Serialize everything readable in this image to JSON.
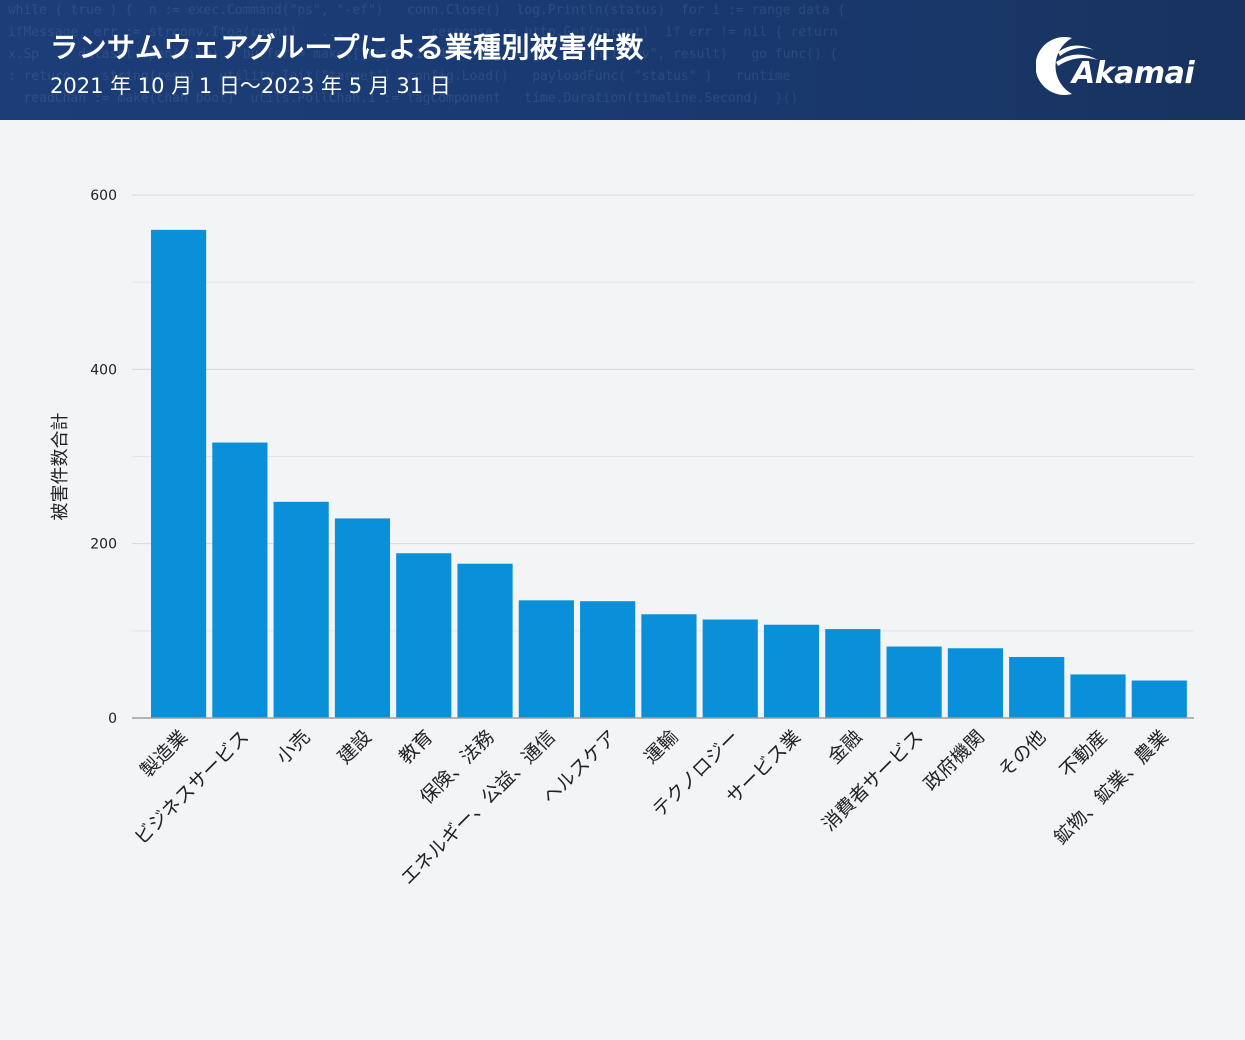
{
  "header": {
    "title": "ランサムウェアグループによる業種別被害件数",
    "subtitle": "2021 年 10 月 1 日〜2023 年 5 月 31 日",
    "logo_text": "Akamai",
    "background_color": "#1d3d78"
  },
  "chart_data": {
    "type": "bar",
    "ylabel": "被害件数合計",
    "xlabel": "",
    "ylim": [
      0,
      600
    ],
    "yticks": [
      0,
      200,
      400,
      600
    ],
    "minor_grid": [
      100,
      300,
      500
    ],
    "grid": true,
    "bar_color": "#0a90d8",
    "categories": [
      "製造業",
      "ビジネスサービス",
      "小売",
      "建設",
      "教育",
      "保険、法務",
      "エネルギー、公益、通信",
      "ヘルスケア",
      "運輸",
      "テクノロジー",
      "サービス業",
      "金融",
      "消費者サービス",
      "政府機関",
      "その他",
      "不動産",
      "鉱物、鉱業、農業"
    ],
    "values": [
      560,
      316,
      248,
      229,
      189,
      177,
      135,
      134,
      119,
      113,
      107,
      102,
      82,
      80,
      70,
      50,
      43
    ]
  }
}
